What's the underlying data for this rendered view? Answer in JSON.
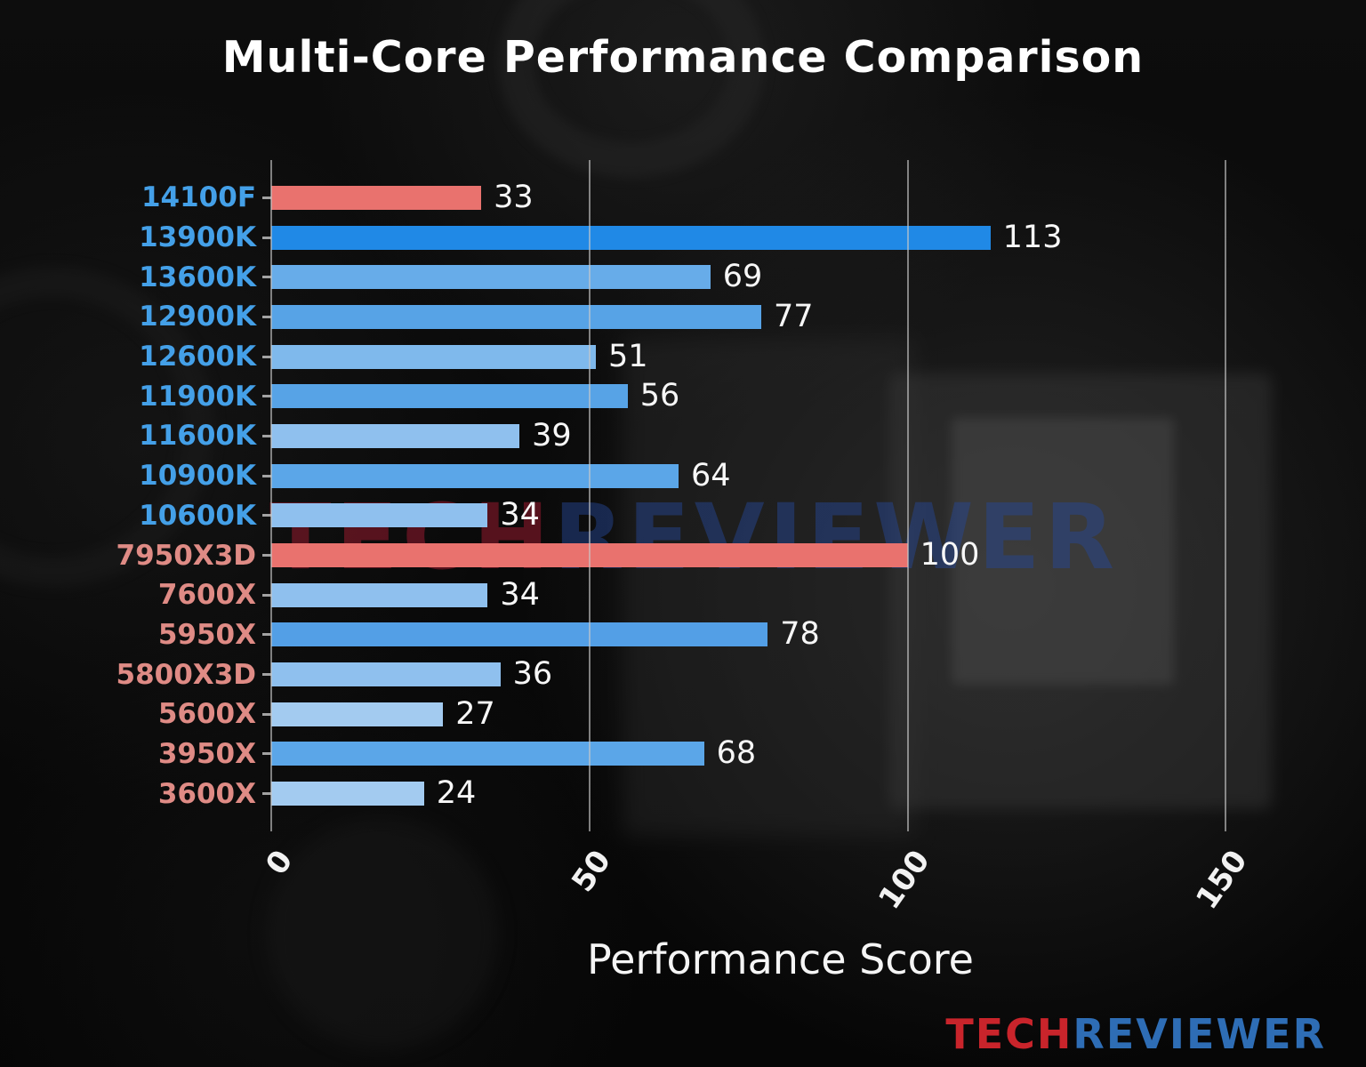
{
  "chart_data": {
    "type": "bar",
    "orientation": "horizontal",
    "title": "Multi-Core Performance Comparison",
    "xlabel": "Performance Score",
    "xlim": [
      0,
      160
    ],
    "ticks": [
      0,
      50,
      100,
      150
    ],
    "grid": true,
    "legend": false,
    "rows": [
      {
        "label": "14100F",
        "value": 33,
        "bar_color": "#e9726e",
        "label_color": "#44a0e8"
      },
      {
        "label": "13900K",
        "value": 113,
        "bar_color": "#2089e6",
        "label_color": "#44a0e8"
      },
      {
        "label": "13600K",
        "value": 69,
        "bar_color": "#67ace9",
        "label_color": "#44a0e8"
      },
      {
        "label": "12900K",
        "value": 77,
        "bar_color": "#57a3e6",
        "label_color": "#44a0e8"
      },
      {
        "label": "12600K",
        "value": 51,
        "bar_color": "#7fb9ec",
        "label_color": "#44a0e8"
      },
      {
        "label": "11900K",
        "value": 56,
        "bar_color": "#57a3e6",
        "label_color": "#44a0e8"
      },
      {
        "label": "11600K",
        "value": 39,
        "bar_color": "#8fc0ee",
        "label_color": "#44a0e8"
      },
      {
        "label": "10900K",
        "value": 64,
        "bar_color": "#5ba6e8",
        "label_color": "#44a0e8"
      },
      {
        "label": "10600K",
        "value": 34,
        "bar_color": "#8fc0ee",
        "label_color": "#44a0e8"
      },
      {
        "label": "7950X3D",
        "value": 100,
        "bar_color": "#e9726e",
        "label_color": "#df8b85"
      },
      {
        "label": "7600X",
        "value": 34,
        "bar_color": "#8fc0ee",
        "label_color": "#df8b85"
      },
      {
        "label": "5950X",
        "value": 78,
        "bar_color": "#539fe6",
        "label_color": "#df8b85"
      },
      {
        "label": "5800X3D",
        "value": 36,
        "bar_color": "#8fc0ee",
        "label_color": "#df8b85"
      },
      {
        "label": "5600X",
        "value": 27,
        "bar_color": "#a3cbf0",
        "label_color": "#df8b85"
      },
      {
        "label": "3950X",
        "value": 68,
        "bar_color": "#5ba6e8",
        "label_color": "#df8b85"
      },
      {
        "label": "3600X",
        "value": 24,
        "bar_color": "#a3cbf0",
        "label_color": "#df8b85"
      }
    ],
    "colors": {
      "intel_label": "#44a0e8",
      "amd_label": "#df8b85",
      "highlight_bar": "#e9726e",
      "value_text": "#f7f7f7",
      "gridline": "#c8c8c8"
    }
  },
  "watermark": {
    "part1": "TECH",
    "part2": "REVIEWER"
  },
  "brand": {
    "part1": "TECH",
    "part2": "REVIEWER",
    "part1_color": "#c9242b",
    "part2_color": "#2e6db5"
  }
}
